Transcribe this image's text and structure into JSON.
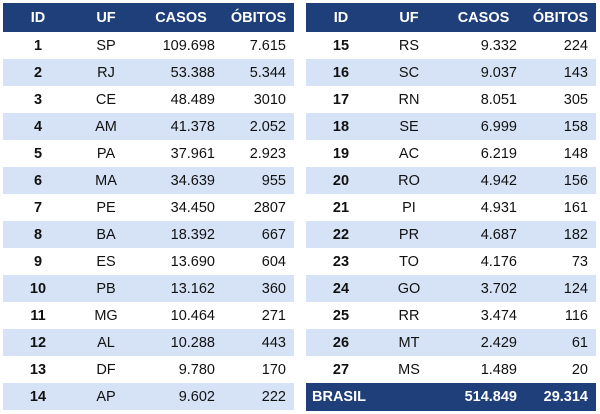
{
  "headers": {
    "id": "ID",
    "uf": "UF",
    "casos": "CASOS",
    "obitos": "ÓBITOS"
  },
  "left_rows": [
    {
      "id": "1",
      "uf": "SP",
      "casos": "109.698",
      "obitos": "7.615"
    },
    {
      "id": "2",
      "uf": "RJ",
      "casos": "53.388",
      "obitos": "5.344"
    },
    {
      "id": "3",
      "uf": "CE",
      "casos": "48.489",
      "obitos": "3010"
    },
    {
      "id": "4",
      "uf": "AM",
      "casos": "41.378",
      "obitos": "2.052"
    },
    {
      "id": "5",
      "uf": "PA",
      "casos": "37.961",
      "obitos": "2.923"
    },
    {
      "id": "6",
      "uf": "MA",
      "casos": "34.639",
      "obitos": "955"
    },
    {
      "id": "7",
      "uf": "PE",
      "casos": "34.450",
      "obitos": "2807"
    },
    {
      "id": "8",
      "uf": "BA",
      "casos": "18.392",
      "obitos": "667"
    },
    {
      "id": "9",
      "uf": "ES",
      "casos": "13.690",
      "obitos": "604"
    },
    {
      "id": "10",
      "uf": "PB",
      "casos": "13.162",
      "obitos": "360"
    },
    {
      "id": "11",
      "uf": "MG",
      "casos": "10.464",
      "obitos": "271"
    },
    {
      "id": "12",
      "uf": "AL",
      "casos": "10.288",
      "obitos": "443"
    },
    {
      "id": "13",
      "uf": "DF",
      "casos": "9.780",
      "obitos": "170"
    },
    {
      "id": "14",
      "uf": "AP",
      "casos": "9.602",
      "obitos": "222"
    }
  ],
  "right_rows": [
    {
      "id": "15",
      "uf": "RS",
      "casos": "9.332",
      "obitos": "224"
    },
    {
      "id": "16",
      "uf": "SC",
      "casos": "9.037",
      "obitos": "143"
    },
    {
      "id": "17",
      "uf": "RN",
      "casos": "8.051",
      "obitos": "305"
    },
    {
      "id": "18",
      "uf": "SE",
      "casos": "6.999",
      "obitos": "158"
    },
    {
      "id": "19",
      "uf": "AC",
      "casos": "6.219",
      "obitos": "148"
    },
    {
      "id": "20",
      "uf": "RO",
      "casos": "4.942",
      "obitos": "156"
    },
    {
      "id": "21",
      "uf": "PI",
      "casos": "4.931",
      "obitos": "161"
    },
    {
      "id": "22",
      "uf": "PR",
      "casos": "4.687",
      "obitos": "182"
    },
    {
      "id": "23",
      "uf": "TO",
      "casos": "4.176",
      "obitos": "73"
    },
    {
      "id": "24",
      "uf": "GO",
      "casos": "3.702",
      "obitos": "124"
    },
    {
      "id": "25",
      "uf": "RR",
      "casos": "3.474",
      "obitos": "116"
    },
    {
      "id": "26",
      "uf": "MT",
      "casos": "2.429",
      "obitos": "61"
    },
    {
      "id": "27",
      "uf": "MS",
      "casos": "1.489",
      "obitos": "20"
    }
  ],
  "total": {
    "label": "BRASIL",
    "casos": "514.849",
    "obitos": "29.314"
  },
  "colors": {
    "header_bg": "#1f3f7a",
    "stripe": "#d6e2f5"
  }
}
